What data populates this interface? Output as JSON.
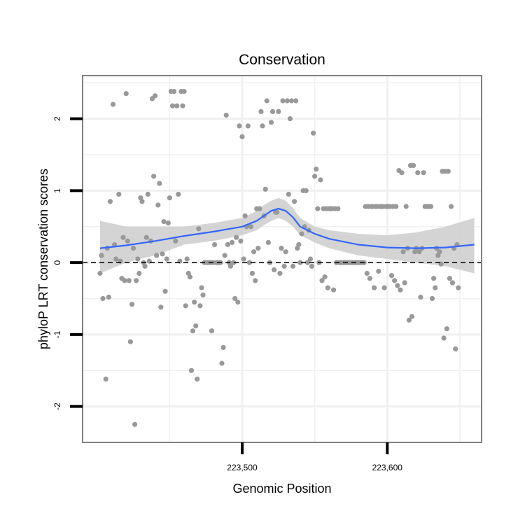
{
  "chart_data": {
    "type": "scatter",
    "title": "Conservation",
    "xlabel": "Genomic Position",
    "ylabel": "phyloP LRT conservation scores",
    "xlim": [
      223390,
      223665
    ],
    "ylim": [
      -2.5,
      2.6
    ],
    "x_ticks": [
      {
        "value": 223500,
        "label": "223,500"
      },
      {
        "value": 223600,
        "label": "223,600"
      }
    ],
    "y_ticks": [
      {
        "value": -2,
        "label": "-2"
      },
      {
        "value": -1,
        "label": "-1"
      },
      {
        "value": 0,
        "label": "0"
      },
      {
        "value": 1,
        "label": "1"
      },
      {
        "value": 2,
        "label": "2"
      }
    ],
    "grid": true,
    "reference_line": {
      "y": 0,
      "style": "dashed"
    },
    "colors": {
      "points": "#999999",
      "smooth": "#3366FF",
      "band": "#cccccc",
      "panel_border": "#808080",
      "grid": "#f0f0f0"
    },
    "points": [
      [
        223402,
        -0.15
      ],
      [
        223403,
        0.1
      ],
      [
        223404,
        -0.5
      ],
      [
        223406,
        -1.62
      ],
      [
        223407,
        0.2
      ],
      [
        223408,
        -0.48
      ],
      [
        223409,
        0.85
      ],
      [
        223411,
        2.2
      ],
      [
        223412,
        0.25
      ],
      [
        223413,
        0.05
      ],
      [
        223415,
        0.95
      ],
      [
        223416,
        0.02
      ],
      [
        223417,
        -0.22
      ],
      [
        223418,
        0.35
      ],
      [
        223419,
        -0.25
      ],
      [
        223420,
        2.35
      ],
      [
        223421,
        0.3
      ],
      [
        223422,
        -0.25
      ],
      [
        223423,
        -1.1
      ],
      [
        223424,
        -0.58
      ],
      [
        223425,
        0.2
      ],
      [
        223426,
        -2.25
      ],
      [
        223427,
        -0.25
      ],
      [
        223428,
        0.05
      ],
      [
        223429,
        -0.15
      ],
      [
        223430,
        0.9
      ],
      [
        223431,
        0.85
      ],
      [
        223432,
        0.0
      ],
      [
        223433,
        -0.05
      ],
      [
        223434,
        0.35
      ],
      [
        223435,
        0.95
      ],
      [
        223436,
        0.02
      ],
      [
        223437,
        0.3
      ],
      [
        223438,
        2.28
      ],
      [
        223439,
        1.2
      ],
      [
        223440,
        2.32
      ],
      [
        223441,
        0.1
      ],
      [
        223442,
        0.8
      ],
      [
        223443,
        1.1
      ],
      [
        223444,
        -0.62
      ],
      [
        223445,
        0.12
      ],
      [
        223446,
        0.57
      ],
      [
        223447,
        -0.4
      ],
      [
        223448,
        0.05
      ],
      [
        223449,
        0.55
      ],
      [
        223450,
        0.9
      ],
      [
        223451,
        2.38
      ],
      [
        223452,
        2.18
      ],
      [
        223453,
        2.38
      ],
      [
        223454,
        0.3
      ],
      [
        223455,
        2.18
      ],
      [
        223456,
        0.95
      ],
      [
        223457,
        0.02
      ],
      [
        223458,
        2.38
      ],
      [
        223459,
        2.18
      ],
      [
        223460,
        2.38
      ],
      [
        223461,
        -0.6
      ],
      [
        223462,
        0.05
      ],
      [
        223463,
        -0.15
      ],
      [
        223464,
        -0.2
      ],
      [
        223465,
        -1.5
      ],
      [
        223466,
        -0.95
      ],
      [
        223467,
        -0.55
      ],
      [
        223468,
        -0.88
      ],
      [
        223469,
        -1.62
      ],
      [
        223470,
        0.47
      ],
      [
        223471,
        -0.6
      ],
      [
        223472,
        -0.35
      ],
      [
        223473,
        -0.45
      ],
      [
        223474,
        0.0
      ],
      [
        223475,
        0.0
      ],
      [
        223476,
        0.0
      ],
      [
        223477,
        0.0
      ],
      [
        223478,
        0.0
      ],
      [
        223479,
        -0.95
      ],
      [
        223480,
        0.0
      ],
      [
        223481,
        0.25
      ],
      [
        223482,
        0.0
      ],
      [
        223483,
        0.0
      ],
      [
        223484,
        0.0
      ],
      [
        223485,
        0.0
      ],
      [
        223486,
        -1.4
      ],
      [
        223487,
        -1.18
      ],
      [
        223488,
        0.1
      ],
      [
        223489,
        2.05
      ],
      [
        223490,
        0.25
      ],
      [
        223491,
        0.0
      ],
      [
        223492,
        -0.05
      ],
      [
        223493,
        0.28
      ],
      [
        223494,
        0.0
      ],
      [
        223495,
        -0.5
      ],
      [
        223496,
        0.35
      ],
      [
        223497,
        -0.55
      ],
      [
        223498,
        1.9
      ],
      [
        223499,
        0.3
      ],
      [
        223500,
        1.75
      ],
      [
        223501,
        0.05
      ],
      [
        223502,
        0.65
      ],
      [
        223503,
        0.5
      ],
      [
        223504,
        1.9
      ],
      [
        223505,
        0.0
      ],
      [
        223506,
        0.5
      ],
      [
        223507,
        -0.15
      ],
      [
        223508,
        0.15
      ],
      [
        223509,
        -0.25
      ],
      [
        223510,
        0.75
      ],
      [
        223511,
        0.2
      ],
      [
        223512,
        0.75
      ],
      [
        223513,
        2.1
      ],
      [
        223514,
        1.9
      ],
      [
        223515,
        0.65
      ],
      [
        223516,
        1.02
      ],
      [
        223517,
        2.25
      ],
      [
        223518,
        0.28
      ],
      [
        223519,
        0.0
      ],
      [
        223520,
        1.95
      ],
      [
        223521,
        2.1
      ],
      [
        223522,
        -0.1
      ],
      [
        223523,
        0.7
      ],
      [
        223524,
        0.7
      ],
      [
        223525,
        2.1
      ],
      [
        223526,
        -0.15
      ],
      [
        223527,
        0.2
      ],
      [
        223528,
        2.25
      ],
      [
        223529,
        -0.05
      ],
      [
        223530,
        0.15
      ],
      [
        223531,
        2.25
      ],
      [
        223532,
        0.95
      ],
      [
        223533,
        2.0
      ],
      [
        223534,
        2.25
      ],
      [
        223535,
        -0.05
      ],
      [
        223536,
        0.85
      ],
      [
        223537,
        2.25
      ],
      [
        223538,
        0.2
      ],
      [
        223539,
        0.25
      ],
      [
        223540,
        0.0
      ],
      [
        223541,
        0.4
      ],
      [
        223542,
        1.0
      ],
      [
        223543,
        0.5
      ],
      [
        223544,
        1.0
      ],
      [
        223545,
        0.0
      ],
      [
        223546,
        0.45
      ],
      [
        223547,
        0.05
      ],
      [
        223548,
        -0.05
      ],
      [
        223549,
        1.8
      ],
      [
        223550,
        1.2
      ],
      [
        223551,
        1.3
      ],
      [
        223552,
        0.75
      ],
      [
        223553,
        0.0
      ],
      [
        223554,
        1.15
      ],
      [
        223555,
        -0.25
      ],
      [
        223556,
        0.75
      ],
      [
        223557,
        -0.2
      ],
      [
        223558,
        0.75
      ],
      [
        223559,
        -0.35
      ],
      [
        223560,
        0.75
      ],
      [
        223561,
        0.75
      ],
      [
        223562,
        0.75
      ],
      [
        223563,
        -0.38
      ],
      [
        223564,
        0.75
      ],
      [
        223565,
        0.0
      ],
      [
        223566,
        0.75
      ],
      [
        223567,
        0.0
      ],
      [
        223568,
        0.0
      ],
      [
        223569,
        0.0
      ],
      [
        223570,
        0.0
      ],
      [
        223571,
        0.0
      ],
      [
        223572,
        0.0
      ],
      [
        223573,
        0.0
      ],
      [
        223574,
        0.0
      ],
      [
        223575,
        0.0
      ],
      [
        223576,
        0.0
      ],
      [
        223577,
        0.0
      ],
      [
        223578,
        0.0
      ],
      [
        223579,
        0.0
      ],
      [
        223580,
        0.0
      ],
      [
        223581,
        0.0
      ],
      [
        223582,
        0.0
      ],
      [
        223583,
        0.0
      ],
      [
        223584,
        0.0
      ],
      [
        223585,
        0.78
      ],
      [
        223586,
        -0.15
      ],
      [
        223587,
        0.78
      ],
      [
        223588,
        -0.22
      ],
      [
        223589,
        0.78
      ],
      [
        223590,
        0.78
      ],
      [
        223591,
        -0.35
      ],
      [
        223592,
        0.78
      ],
      [
        223593,
        0.78
      ],
      [
        223594,
        -0.12
      ],
      [
        223595,
        0.78
      ],
      [
        223596,
        0.78
      ],
      [
        223597,
        0.78
      ],
      [
        223598,
        -0.35
      ],
      [
        223599,
        0.78
      ],
      [
        223600,
        0.78
      ],
      [
        223601,
        0.78
      ],
      [
        223602,
        0.78
      ],
      [
        223603,
        -0.18
      ],
      [
        223604,
        0.78
      ],
      [
        223605,
        -0.25
      ],
      [
        223606,
        0.78
      ],
      [
        223607,
        -0.32
      ],
      [
        223608,
        1.28
      ],
      [
        223609,
        -0.38
      ],
      [
        223610,
        1.25
      ],
      [
        223611,
        0.15
      ],
      [
        223612,
        -0.28
      ],
      [
        223613,
        0.78
      ],
      [
        223614,
        0.2
      ],
      [
        223615,
        -0.8
      ],
      [
        223616,
        1.35
      ],
      [
        223617,
        -0.75
      ],
      [
        223618,
        1.35
      ],
      [
        223619,
        0.15
      ],
      [
        223620,
        0.2
      ],
      [
        223621,
        1.25
      ],
      [
        223622,
        0.15
      ],
      [
        223623,
        -0.48
      ],
      [
        223624,
        0.2
      ],
      [
        223625,
        1.25
      ],
      [
        223626,
        0.78
      ],
      [
        223627,
        0.78
      ],
      [
        223628,
        0.78
      ],
      [
        223629,
        0.78
      ],
      [
        223630,
        0.78
      ],
      [
        223631,
        -0.5
      ],
      [
        223632,
        -0.22
      ],
      [
        223633,
        -0.35
      ],
      [
        223634,
        0.2
      ],
      [
        223635,
        0.1
      ],
      [
        223636,
        0.15
      ],
      [
        223637,
        -0.02
      ],
      [
        223638,
        1.27
      ],
      [
        223639,
        -1.05
      ],
      [
        223640,
        1.27
      ],
      [
        223641,
        -0.92
      ],
      [
        223642,
        1.27
      ],
      [
        223643,
        -0.22
      ],
      [
        223644,
        0.78
      ],
      [
        223645,
        -0.28
      ],
      [
        223646,
        0.2
      ],
      [
        223647,
        -1.2
      ],
      [
        223648,
        0.25
      ],
      [
        223649,
        -0.35
      ]
    ],
    "smooth": {
      "x": [
        223402,
        223420,
        223440,
        223460,
        223480,
        223500,
        223510,
        223515,
        223520,
        223525,
        223530,
        223535,
        223540,
        223550,
        223560,
        223580,
        223600,
        223620,
        223640,
        223660
      ],
      "y": [
        0.2,
        0.24,
        0.3,
        0.37,
        0.43,
        0.5,
        0.58,
        0.65,
        0.72,
        0.75,
        0.72,
        0.63,
        0.5,
        0.4,
        0.33,
        0.25,
        0.21,
        0.2,
        0.21,
        0.25
      ],
      "lower": [
        -0.15,
        0.0,
        0.1,
        0.25,
        0.3,
        0.38,
        0.45,
        0.52,
        0.58,
        0.62,
        0.58,
        0.5,
        0.38,
        0.28,
        0.2,
        0.1,
        0.05,
        0.0,
        -0.05,
        -0.15
      ],
      "upper": [
        0.58,
        0.5,
        0.5,
        0.5,
        0.55,
        0.62,
        0.72,
        0.8,
        0.86,
        0.9,
        0.86,
        0.76,
        0.62,
        0.5,
        0.45,
        0.4,
        0.38,
        0.42,
        0.5,
        0.62
      ]
    }
  }
}
